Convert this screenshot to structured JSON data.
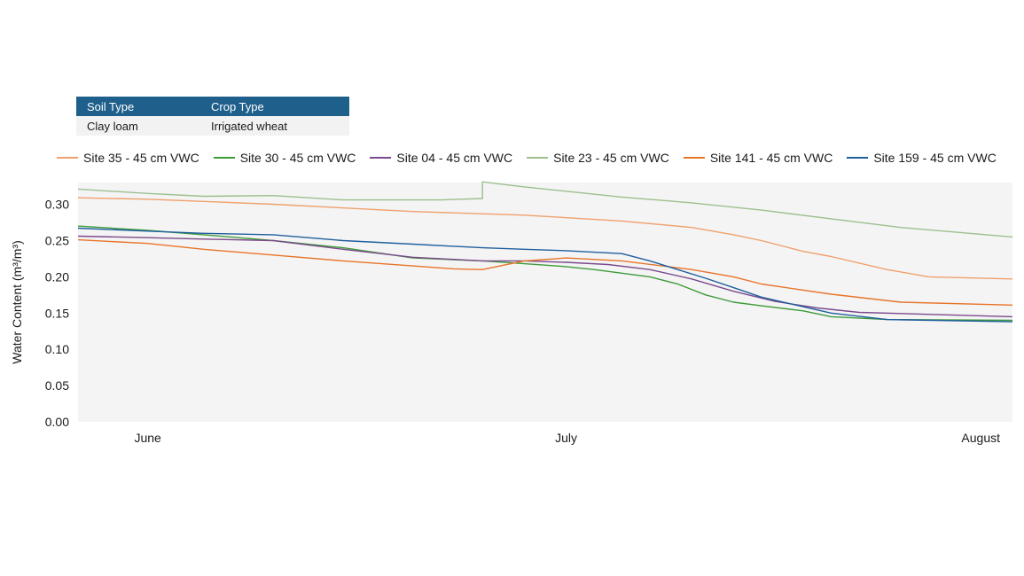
{
  "info_table": {
    "headers": [
      "Soil Type",
      "Crop Type"
    ],
    "values": [
      "Clay loam",
      "Irrigated wheat"
    ]
  },
  "chart_data": {
    "type": "line",
    "title": "",
    "xlabel": "",
    "ylabel": "Water Content (m³/m³)",
    "ylim": [
      0,
      0.33
    ],
    "yticks": [
      0.0,
      0.05,
      0.1,
      0.15,
      0.2,
      0.25,
      0.3
    ],
    "ytick_labels": [
      "0.00",
      "0.05",
      "0.10",
      "0.15",
      "0.20",
      "0.25",
      "0.30"
    ],
    "xticks": [
      {
        "label": "June",
        "date": "2023-06-01"
      },
      {
        "label": "July",
        "date": "2023-07-01"
      },
      {
        "label": "August",
        "date": "2023-08-01"
      }
    ],
    "xlim": [
      "2023-05-27",
      "2023-08-02"
    ],
    "grid": false,
    "legend": "top",
    "background": "#f4f4f4",
    "series": [
      {
        "name": "Site 35 - 45 cm VWC",
        "color": "#f0a06c",
        "x": [
          "2023-05-27",
          "2023-06-01",
          "2023-06-10",
          "2023-06-20",
          "2023-06-28",
          "2023-07-05",
          "2023-07-10",
          "2023-07-13",
          "2023-07-15",
          "2023-07-18",
          "2023-07-20",
          "2023-07-24",
          "2023-07-27",
          "2023-08-02"
        ],
        "y": [
          0.309,
          0.307,
          0.3,
          0.29,
          0.285,
          0.277,
          0.268,
          0.258,
          0.25,
          0.235,
          0.228,
          0.21,
          0.2,
          0.197
        ]
      },
      {
        "name": "Site 30 - 45 cm VWC",
        "color": "#3f9b3a",
        "x": [
          "2023-05-27",
          "2023-06-01",
          "2023-06-05",
          "2023-06-10",
          "2023-06-15",
          "2023-06-20",
          "2023-06-25",
          "2023-06-28",
          "2023-07-01",
          "2023-07-03",
          "2023-07-05",
          "2023-07-07",
          "2023-07-09",
          "2023-07-11",
          "2023-07-13",
          "2023-07-15",
          "2023-07-18",
          "2023-07-20",
          "2023-07-24",
          "2023-08-02"
        ],
        "y": [
          0.27,
          0.264,
          0.258,
          0.25,
          0.24,
          0.226,
          0.222,
          0.218,
          0.214,
          0.21,
          0.205,
          0.2,
          0.19,
          0.175,
          0.165,
          0.16,
          0.153,
          0.145,
          0.141,
          0.14
        ]
      },
      {
        "name": "Site 04 - 45 cm VWC",
        "color": "#7b4a8c",
        "x": [
          "2023-05-27",
          "2023-06-01",
          "2023-06-05",
          "2023-06-10",
          "2023-06-15",
          "2023-06-20",
          "2023-06-25",
          "2023-06-28",
          "2023-07-01",
          "2023-07-04",
          "2023-07-07",
          "2023-07-10",
          "2023-07-13",
          "2023-07-16",
          "2023-07-19",
          "2023-07-22",
          "2023-08-02"
        ],
        "y": [
          0.256,
          0.254,
          0.252,
          0.25,
          0.238,
          0.227,
          0.222,
          0.222,
          0.22,
          0.217,
          0.21,
          0.197,
          0.18,
          0.166,
          0.157,
          0.151,
          0.145
        ]
      },
      {
        "name": "Site 23 - 45 cm VWC",
        "color": "#9dbf8e",
        "x": [
          "2023-05-27",
          "2023-06-01",
          "2023-06-05",
          "2023-06-10",
          "2023-06-15",
          "2023-06-22",
          "2023-06-25",
          "2023-06-25",
          "2023-06-28",
          "2023-07-05",
          "2023-07-10",
          "2023-07-15",
          "2023-07-20",
          "2023-07-25",
          "2023-08-02"
        ],
        "y": [
          0.321,
          0.315,
          0.311,
          0.312,
          0.306,
          0.306,
          0.308,
          0.331,
          0.324,
          0.31,
          0.302,
          0.292,
          0.28,
          0.268,
          0.255
        ]
      },
      {
        "name": "Site 141 - 45 cm VWC",
        "color": "#e8742a",
        "x": [
          "2023-05-27",
          "2023-06-01",
          "2023-06-05",
          "2023-06-10",
          "2023-06-15",
          "2023-06-20",
          "2023-06-23",
          "2023-06-25",
          "2023-06-28",
          "2023-07-01",
          "2023-07-05",
          "2023-07-10",
          "2023-07-13",
          "2023-07-15",
          "2023-07-20",
          "2023-07-25",
          "2023-08-02"
        ],
        "y": [
          0.251,
          0.246,
          0.238,
          0.23,
          0.222,
          0.215,
          0.211,
          0.21,
          0.222,
          0.226,
          0.222,
          0.21,
          0.2,
          0.19,
          0.176,
          0.165,
          0.161
        ]
      },
      {
        "name": "Site 159 - 45 cm VWC",
        "color": "#1f5f9e",
        "x": [
          "2023-05-27",
          "2023-06-01",
          "2023-06-05",
          "2023-06-10",
          "2023-06-15",
          "2023-06-20",
          "2023-06-25",
          "2023-06-28",
          "2023-07-01",
          "2023-07-05",
          "2023-07-07",
          "2023-07-09",
          "2023-07-11",
          "2023-07-13",
          "2023-07-15",
          "2023-07-17",
          "2023-07-20",
          "2023-07-24",
          "2023-08-02"
        ],
        "y": [
          0.267,
          0.263,
          0.26,
          0.258,
          0.25,
          0.245,
          0.24,
          0.238,
          0.236,
          0.232,
          0.222,
          0.21,
          0.198,
          0.185,
          0.172,
          0.163,
          0.15,
          0.141,
          0.138
        ]
      }
    ]
  }
}
